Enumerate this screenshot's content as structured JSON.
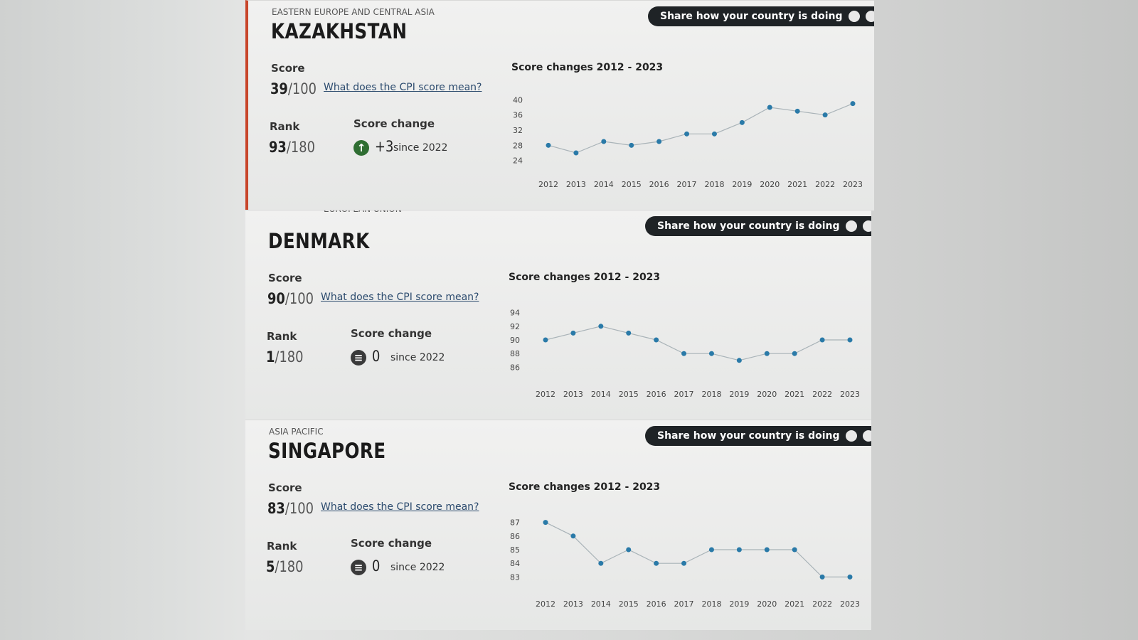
{
  "panels": [
    {
      "region": "Eastern Europe and Central Asia",
      "country": "KAZAKHSTAN",
      "share": "Share how your country is doing",
      "score_label": "Score",
      "score": "39",
      "score_max": "/100",
      "link": "What does the CPI score mean?",
      "rank_label": "Rank",
      "rank": "93",
      "rank_max": "/180",
      "change_label": "Score change",
      "change": "+3",
      "change_icon": "up",
      "since": "since 2022"
    },
    {
      "region": "European Union",
      "country": "DENMARK",
      "share": "Share how your country is doing",
      "score_label": "Score",
      "score": "90",
      "score_max": "/100",
      "link": "What does the CPI score mean?",
      "rank_label": "Rank",
      "rank": "1",
      "rank_max": "/180",
      "change_label": "Score change",
      "change": "0",
      "change_icon": "equal",
      "since": "since 2022"
    },
    {
      "region": "Asia Pacific",
      "country": "SINGAPORE",
      "share": "Share how your country is doing",
      "score_label": "Score",
      "score": "83",
      "score_max": "/100",
      "link": "What does the CPI score mean?",
      "rank_label": "Rank",
      "rank": "5",
      "rank_max": "/180",
      "change_label": "Score change",
      "change": "0",
      "change_icon": "equal",
      "since": "since 2022"
    }
  ],
  "chart_data": [
    {
      "type": "line",
      "title": "Score changes 2012 - 2023",
      "color": "#2a7aa8",
      "categories": [
        "2012",
        "2013",
        "2014",
        "2015",
        "2016",
        "2017",
        "2018",
        "2019",
        "2020",
        "2021",
        "2022",
        "2023"
      ],
      "values": [
        28,
        26,
        29,
        28,
        29,
        31,
        31,
        34,
        38,
        37,
        36,
        39
      ],
      "ylim": [
        23,
        41
      ],
      "yticks": [
        24,
        28,
        32,
        36,
        40
      ]
    },
    {
      "type": "line",
      "title": "Score changes 2012 - 2023",
      "color": "#2a7aa8",
      "categories": [
        "2012",
        "2013",
        "2014",
        "2015",
        "2016",
        "2017",
        "2018",
        "2019",
        "2020",
        "2021",
        "2022",
        "2023"
      ],
      "values": [
        90,
        91,
        92,
        91,
        90,
        88,
        88,
        87,
        88,
        88,
        90,
        90
      ],
      "ylim": [
        85,
        95
      ],
      "yticks": [
        86,
        88,
        90,
        92,
        94
      ]
    },
    {
      "type": "line",
      "title": "Score changes 2012 - 2023",
      "color": "#2a7aa8",
      "categories": [
        "2012",
        "2013",
        "2014",
        "2015",
        "2016",
        "2017",
        "2018",
        "2019",
        "2020",
        "2021",
        "2022",
        "2023"
      ],
      "values": [
        87,
        86,
        84,
        85,
        84,
        84,
        85,
        85,
        85,
        85,
        83,
        83
      ],
      "ylim": [
        82.5,
        87.5
      ],
      "yticks": [
        83,
        84,
        85,
        86,
        87
      ]
    }
  ]
}
